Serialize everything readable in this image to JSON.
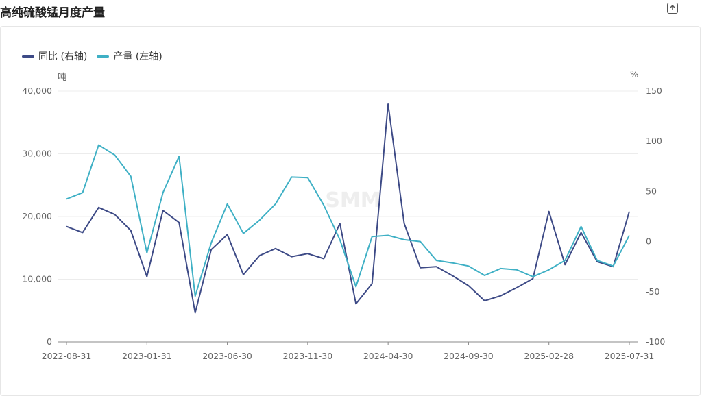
{
  "title": "高纯硫酸锰月度产量",
  "toolbar": {
    "export_icon": "export-icon"
  },
  "watermark": "SMM",
  "chart_data": {
    "type": "line",
    "legend_position": "top-left",
    "grid": true,
    "x_tick_labels": [
      "2022-08-31",
      "2023-01-31",
      "2023-06-30",
      "2023-11-30",
      "2024-04-30",
      "2024-09-30",
      "2025-02-28",
      "2025-07-31"
    ],
    "x": [
      "2022-08-31",
      "2022-09-30",
      "2022-10-31",
      "2022-11-30",
      "2022-12-31",
      "2023-01-31",
      "2023-02-28",
      "2023-03-31",
      "2023-04-30",
      "2023-05-31",
      "2023-06-30",
      "2023-07-31",
      "2023-08-31",
      "2023-09-30",
      "2023-10-31",
      "2023-11-30",
      "2023-12-31",
      "2024-01-31",
      "2024-02-29",
      "2024-03-31",
      "2024-04-30",
      "2024-05-31",
      "2024-06-30",
      "2024-07-31",
      "2024-08-31",
      "2024-09-30",
      "2024-10-31",
      "2024-11-30",
      "2024-12-31",
      "2025-01-31",
      "2025-02-28",
      "2025-03-31",
      "2025-04-30",
      "2025-05-31",
      "2025-06-30",
      "2025-07-31"
    ],
    "left_axis": {
      "unit": "吨",
      "ylim": [
        0,
        40000
      ],
      "ticks": [
        "40,000",
        "30,000",
        "20,000",
        "10,000",
        "0"
      ]
    },
    "right_axis": {
      "unit": "%",
      "ylim": [
        -100,
        150
      ],
      "ticks": [
        "150",
        "100",
        "50",
        "0",
        "-50",
        "-100"
      ]
    },
    "series": [
      {
        "name": "同比 (右轴)",
        "axis": "right",
        "color": "#3d4a86",
        "values": [
          15,
          9,
          34,
          27,
          11,
          -35,
          31,
          19,
          -71,
          -8,
          7,
          -33,
          -14,
          -7,
          -15,
          -12,
          -17,
          18,
          -62,
          -42,
          137,
          18,
          -26,
          -25,
          -34,
          -44,
          -59,
          -54,
          -46,
          -37,
          30,
          -23,
          9,
          -20,
          -25,
          30
        ]
      },
      {
        "name": "产量 (左轴)",
        "axis": "left",
        "color": "#3fb0c5",
        "values": [
          22800,
          23800,
          31400,
          29800,
          26400,
          14200,
          23800,
          29600,
          7300,
          15800,
          22000,
          17300,
          19400,
          22000,
          26300,
          26200,
          21800,
          16300,
          8800,
          16800,
          17000,
          16300,
          16000,
          13000,
          12600,
          12100,
          10600,
          11700,
          11500,
          10400,
          11500,
          13000,
          18400,
          13000,
          12100,
          17000
        ]
      }
    ]
  }
}
